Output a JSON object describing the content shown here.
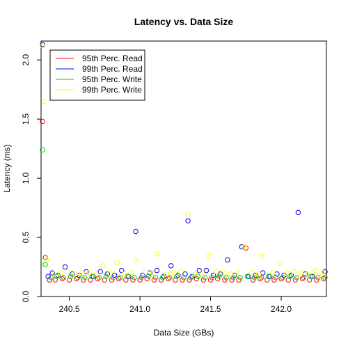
{
  "chart_data": {
    "type": "scatter",
    "title": "Latency vs. Data Size",
    "xlabel": "Data Size (GBs)",
    "ylabel": "Latency (ms)",
    "xlim": [
      240.3,
      242.32
    ],
    "ylim": [
      0,
      2.16
    ],
    "x_ticks": [
      240.5,
      241.0,
      241.5,
      242.0
    ],
    "x_tick_labels": [
      "240.5",
      "241.0",
      "241.5",
      "242.0"
    ],
    "y_ticks": [
      0.0,
      0.5,
      1.0,
      1.5,
      2.0
    ],
    "y_tick_labels": [
      "0.0",
      "0.5",
      "1.0",
      "1.5",
      "2.0"
    ],
    "grid": false,
    "legend_position": "top-left",
    "series": [
      {
        "name": "95th Perc. Read",
        "color": "#ff0000",
        "x": [
          240.31,
          240.33,
          240.36,
          240.4,
          240.45,
          240.5,
          240.55,
          240.6,
          240.65,
          240.7,
          240.75,
          240.8,
          240.85,
          240.9,
          240.95,
          241.0,
          241.05,
          241.1,
          241.15,
          241.2,
          241.25,
          241.3,
          241.35,
          241.4,
          241.45,
          241.5,
          241.55,
          241.6,
          241.65,
          241.7,
          241.75,
          241.8,
          241.85,
          241.9,
          241.95,
          242.0,
          242.05,
          242.1,
          242.15,
          242.2,
          242.25,
          242.3
        ],
        "y": [
          1.48,
          0.33,
          0.14,
          0.14,
          0.15,
          0.14,
          0.15,
          0.14,
          0.14,
          0.15,
          0.14,
          0.14,
          0.15,
          0.14,
          0.14,
          0.14,
          0.15,
          0.14,
          0.14,
          0.15,
          0.14,
          0.14,
          0.14,
          0.15,
          0.14,
          0.14,
          0.15,
          0.14,
          0.14,
          0.14,
          0.41,
          0.14,
          0.15,
          0.14,
          0.14,
          0.15,
          0.14,
          0.14,
          0.15,
          0.14,
          0.14,
          0.15
        ]
      },
      {
        "name": "99th Perc. Read",
        "color": "#0000ff",
        "x": [
          240.31,
          240.35,
          240.38,
          240.42,
          240.47,
          240.52,
          240.57,
          240.62,
          240.67,
          240.72,
          240.77,
          240.82,
          240.87,
          240.92,
          240.97,
          241.02,
          241.07,
          241.12,
          241.17,
          241.22,
          241.27,
          241.32,
          241.34,
          241.37,
          241.42,
          241.47,
          241.52,
          241.57,
          241.62,
          241.67,
          241.72,
          241.77,
          241.82,
          241.87,
          241.92,
          241.97,
          242.02,
          242.07,
          242.12,
          242.17,
          242.22,
          242.31
        ],
        "y": [
          2.13,
          0.17,
          0.2,
          0.18,
          0.25,
          0.19,
          0.18,
          0.21,
          0.17,
          0.21,
          0.19,
          0.18,
          0.22,
          0.17,
          0.55,
          0.18,
          0.2,
          0.22,
          0.17,
          0.26,
          0.18,
          0.19,
          0.64,
          0.17,
          0.22,
          0.22,
          0.18,
          0.19,
          0.31,
          0.18,
          0.42,
          0.17,
          0.18,
          0.2,
          0.17,
          0.19,
          0.18,
          0.18,
          0.71,
          0.19,
          0.17,
          0.21
        ]
      },
      {
        "name": "95th Perc. Write",
        "color": "#00cc00",
        "x": [
          240.31,
          240.33,
          240.37,
          240.41,
          240.46,
          240.51,
          240.56,
          240.61,
          240.66,
          240.71,
          240.76,
          240.81,
          240.86,
          240.91,
          240.96,
          241.01,
          241.06,
          241.11,
          241.16,
          241.21,
          241.26,
          241.31,
          241.36,
          241.41,
          241.46,
          241.51,
          241.56,
          241.61,
          241.66,
          241.71,
          241.76,
          241.81,
          241.86,
          241.91,
          241.96,
          242.01,
          242.06,
          242.11,
          242.16,
          242.21,
          242.26,
          242.31
        ],
        "y": [
          1.24,
          0.27,
          0.16,
          0.17,
          0.16,
          0.17,
          0.16,
          0.16,
          0.17,
          0.16,
          0.17,
          0.16,
          0.16,
          0.17,
          0.16,
          0.16,
          0.17,
          0.16,
          0.16,
          0.16,
          0.17,
          0.16,
          0.16,
          0.17,
          0.16,
          0.16,
          0.17,
          0.16,
          0.16,
          0.16,
          0.17,
          0.16,
          0.16,
          0.17,
          0.16,
          0.16,
          0.17,
          0.16,
          0.16,
          0.17,
          0.16,
          0.16
        ]
      },
      {
        "name": "99th Perc. Write",
        "color": "#ffff00",
        "x": [
          240.31,
          240.32,
          240.34,
          240.39,
          240.44,
          240.49,
          240.54,
          240.59,
          240.64,
          240.69,
          240.74,
          240.79,
          240.84,
          240.89,
          240.94,
          240.97,
          241.04,
          241.09,
          241.12,
          241.19,
          241.24,
          241.29,
          241.34,
          241.39,
          241.44,
          241.49,
          241.54,
          241.59,
          241.64,
          241.69,
          241.74,
          241.79,
          241.84,
          241.86,
          241.94,
          241.99,
          242.04,
          242.09,
          242.14,
          242.19,
          242.24,
          242.29
        ],
        "y": [
          2.12,
          1.65,
          0.31,
          0.19,
          0.2,
          0.21,
          0.19,
          0.2,
          0.2,
          0.19,
          0.26,
          0.2,
          0.29,
          0.19,
          0.2,
          0.31,
          0.21,
          0.2,
          0.36,
          0.19,
          0.2,
          0.21,
          0.7,
          0.19,
          0.2,
          0.34,
          0.21,
          0.2,
          0.19,
          0.2,
          0.42,
          0.2,
          0.19,
          0.34,
          0.2,
          0.28,
          0.2,
          0.21,
          0.2,
          0.19,
          0.22,
          0.2
        ]
      }
    ]
  }
}
